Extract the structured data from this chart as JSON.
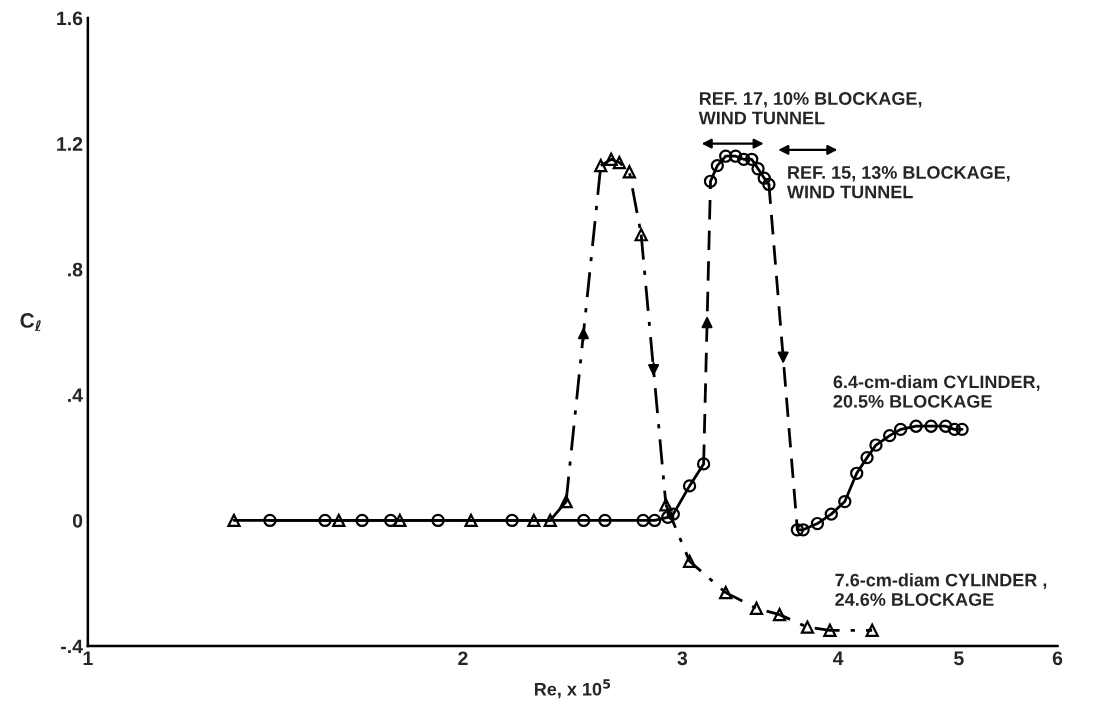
{
  "chart_data": {
    "type": "line",
    "xlabel": "Re, x 10$^{5}$",
    "ylabel": "C$_{ℓ}$",
    "log": "x",
    "xlim": [
      1,
      6
    ],
    "xticks": [
      1,
      2,
      3,
      4,
      5,
      6
    ],
    "ylim": [
      -0.4,
      1.6
    ],
    "yticks": [
      {
        "value": -0.4,
        "label": "-.4"
      },
      0,
      {
        "value": 0.4,
        "label": ".4"
      },
      {
        "value": 0.8,
        "label": ".8"
      },
      1.2,
      1.6
    ],
    "grid": false,
    "legend": false,
    "series": [
      {
        "color": "#000000",
        "marker": "circle",
        "line_style": "solid",
        "x": [
          1.4,
          1.55,
          1.66,
          1.75,
          1.91,
          2.19,
          2.5,
          2.6,
          2.79,
          2.85,
          2.92,
          2.95,
          3.04,
          3.12
        ],
        "values": [
          0,
          0,
          0,
          0,
          0,
          0,
          0,
          0,
          0,
          0,
          0.01,
          0.02,
          0.11,
          0.18
        ]
      },
      {
        "color": "#000000",
        "line_style": "dashed",
        "x": [
          3.12,
          3.16
        ],
        "values": [
          0.18,
          1.08
        ]
      },
      {
        "color": "#000000",
        "marker": "circle",
        "line_style": "solid",
        "x": [
          3.16,
          3.2,
          3.25,
          3.31,
          3.36,
          3.41,
          3.45,
          3.49,
          3.52
        ],
        "values": [
          1.08,
          1.13,
          1.16,
          1.16,
          1.15,
          1.15,
          1.12,
          1.09,
          1.07
        ]
      },
      {
        "color": "#000000",
        "line_style": "dashed",
        "x": [
          3.52,
          3.71
        ],
        "values": [
          1.07,
          -0.03
        ]
      },
      {
        "name": "6.4-cm-diam CYLINDER,\n20.5% BLOCKAGE",
        "color": "#000000",
        "marker": "circle",
        "line_style": "solid",
        "x": [
          3.71,
          3.75,
          3.85,
          3.95,
          4.05,
          4.14,
          4.22,
          4.29,
          4.4,
          4.49,
          4.62,
          4.75,
          4.88,
          4.96,
          5.03
        ],
        "values": [
          -0.03,
          -0.03,
          -0.01,
          0.02,
          0.06,
          0.15,
          0.2,
          0.24,
          0.27,
          0.29,
          0.3,
          0.3,
          0.3,
          0.29,
          0.29
        ]
      },
      {
        "color": "#000000",
        "marker": "triangle",
        "line_style": "solid",
        "x": [
          1.31,
          1.59,
          1.78,
          2.03,
          2.28,
          2.35,
          2.42
        ],
        "values": [
          0,
          0,
          0,
          0,
          0,
          0,
          0.06
        ]
      },
      {
        "color": "#000000",
        "line_style": "dashdot",
        "x": [
          2.42,
          2.58
        ],
        "values": [
          0.06,
          1.13
        ]
      },
      {
        "color": "#000000",
        "marker": "triangle",
        "line_style": "dashdot",
        "x": [
          2.58,
          2.63,
          2.67,
          2.72,
          2.78
        ],
        "values": [
          1.13,
          1.15,
          1.14,
          1.11,
          0.91
        ]
      },
      {
        "color": "#000000",
        "line_style": "dashdot",
        "x": [
          2.78,
          2.91
        ],
        "values": [
          0.91,
          0.05
        ]
      },
      {
        "name": "7.6-cm-diam CYLINDER ,\n24.6% BLOCKAGE",
        "color": "#000000",
        "marker": "triangle",
        "line_style": "dashdot",
        "x": [
          2.91,
          3.04,
          3.25,
          3.44,
          3.59,
          3.78,
          3.94,
          4.26
        ],
        "values": [
          0.05,
          -0.13,
          -0.23,
          -0.28,
          -0.3,
          -0.34,
          -0.35,
          -0.35
        ]
      }
    ],
    "annotations": [
      "REF. 17, 10% BLOCKAGE,\nWIND TUNNEL",
      "REF. 15, 13% BLOCKAGE,\nWIND TUNNEL"
    ]
  }
}
